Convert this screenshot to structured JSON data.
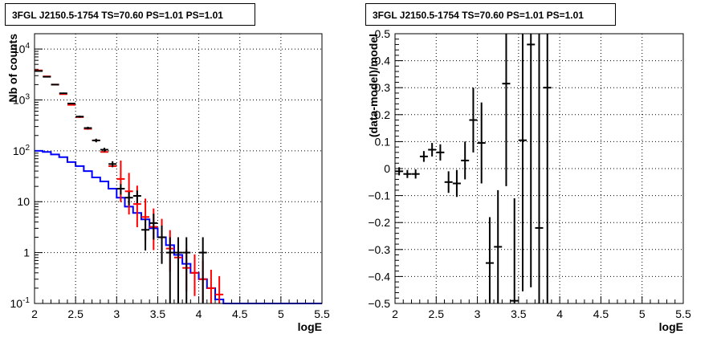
{
  "chart_data": [
    {
      "type": "histogram",
      "title": "3FGL J2150.5-1754 TS=70.60 PS=1.01 PS=1.01",
      "xlabel": "logE",
      "ylabel": "Nb of counts",
      "xlim": [
        2,
        5.5
      ],
      "ylim": [
        0.1,
        20000
      ],
      "yscale": "log",
      "grid": true,
      "x_ticks": [
        "2",
        "2.5",
        "3",
        "3.5",
        "4",
        "4.5",
        "5",
        "5.5"
      ],
      "y_ticks": [
        "10^{-1}",
        "1",
        "10",
        "10^{2}",
        "10^{3}",
        "10^{4}"
      ],
      "series": [
        {
          "color": "#ff0000",
          "x": [
            2.05,
            2.15,
            2.25,
            2.35,
            2.45,
            2.55,
            2.65,
            2.75,
            2.85,
            2.95,
            3.05,
            3.15,
            3.25,
            3.35,
            3.45,
            3.55,
            3.65,
            3.75,
            3.85,
            3.95,
            4.05,
            4.15,
            4.25
          ],
          "y": [
            3800,
            2900,
            2000,
            1300,
            800,
            460,
            270,
            160,
            95,
            50,
            28,
            16,
            9,
            5,
            3.2,
            2,
            1.2,
            0.8,
            0.5,
            0.4,
            0.3,
            0.2,
            0.15
          ]
        },
        {
          "color": "#000000",
          "x": [
            2.05,
            2.15,
            2.25,
            2.35,
            2.45,
            2.55,
            2.65,
            2.75,
            2.85,
            2.95,
            3.05,
            3.15,
            3.25,
            3.35,
            3.45,
            3.55,
            3.65,
            3.75,
            3.85,
            4.05
          ],
          "y": [
            3700,
            2850,
            2000,
            1350,
            850,
            470,
            280,
            160,
            105,
            55,
            18,
            12,
            13,
            2.8,
            3.8,
            2,
            1,
            1,
            1,
            1
          ],
          "yerr": [
            60,
            53,
            45,
            37,
            29,
            22,
            17,
            13,
            10,
            7.4,
            4.2,
            3.5,
            3.6,
            1.7,
            2,
            1.4,
            1,
            1,
            1,
            1
          ]
        },
        {
          "color": "#0000ff",
          "edges": [
            2.0,
            2.1,
            2.2,
            2.3,
            2.4,
            2.5,
            2.6,
            2.7,
            2.8,
            2.9,
            3.0,
            3.1,
            3.2,
            3.3,
            3.4,
            3.5,
            3.6,
            3.7,
            3.8,
            3.9,
            4.0,
            4.1,
            4.2,
            4.3,
            5.5
          ],
          "y": [
            100,
            95,
            85,
            75,
            60,
            50,
            40,
            30,
            25,
            18,
            12,
            8,
            6,
            4.5,
            3,
            2,
            1.4,
            0.9,
            0.6,
            0.4,
            0.3,
            0.2,
            0.12,
            0.1
          ]
        }
      ]
    },
    {
      "type": "scatter",
      "title": "3FGL J2150.5-1754 TS=70.60 PS=1.01 PS=1.01",
      "xlabel": "logE",
      "ylabel": "(data-model)/model",
      "xlim": [
        2,
        5.5
      ],
      "ylim": [
        -0.5,
        0.5
      ],
      "grid": true,
      "x_ticks": [
        "2",
        "2.5",
        "3",
        "3.5",
        "4",
        "4.5",
        "5",
        "5.5"
      ],
      "y_ticks": [
        "−0.5",
        "−0.4",
        "−0.3",
        "−0.2",
        "−0.1",
        "0",
        "0.1",
        "0.2",
        "0.3",
        "0.4",
        "0.5"
      ],
      "points": [
        {
          "x": 2.05,
          "y": -0.01,
          "yerr": 0.015
        },
        {
          "x": 2.15,
          "y": -0.02,
          "yerr": 0.015
        },
        {
          "x": 2.25,
          "y": -0.02,
          "yerr": 0.017
        },
        {
          "x": 2.35,
          "y": 0.045,
          "yerr": 0.02
        },
        {
          "x": 2.45,
          "y": 0.07,
          "yerr": 0.025
        },
        {
          "x": 2.55,
          "y": 0.06,
          "yerr": 0.03
        },
        {
          "x": 2.65,
          "y": -0.05,
          "yerr": 0.04
        },
        {
          "x": 2.75,
          "y": -0.055,
          "yerr": 0.05
        },
        {
          "x": 2.85,
          "y": 0.03,
          "yerr": 0.07
        },
        {
          "x": 2.95,
          "y": 0.18,
          "yerr": 0.12
        },
        {
          "x": 3.05,
          "y": 0.095,
          "yerr": 0.15
        },
        {
          "x": 3.15,
          "y": -0.35,
          "yerr": 0.17
        },
        {
          "x": 3.25,
          "y": -0.29,
          "yerr": 0.21
        },
        {
          "x": 3.35,
          "y": 0.315,
          "yerr": 0.38
        },
        {
          "x": 3.45,
          "y": -0.49,
          "yerr": 0.38
        },
        {
          "x": 3.55,
          "y": 0.105,
          "yerr": 0.56
        },
        {
          "x": 3.65,
          "y": 0.46,
          "yerr": 0.9
        },
        {
          "x": 3.75,
          "y": -0.22,
          "yerr": 1.0
        },
        {
          "x": 3.85,
          "y": 0.3,
          "yerr": 1.0
        }
      ]
    }
  ]
}
